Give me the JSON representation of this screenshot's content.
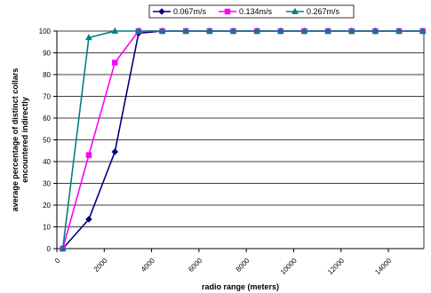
{
  "chart_data": {
    "type": "line",
    "title": "",
    "xlabel": "radio range (meters)",
    "ylabel": "average percentage of distinct collars encountered indirectly",
    "ylabel_lines": [
      "average percentage of distinct collars",
      "encountered indirectly"
    ],
    "xlim": [
      0,
      15500
    ],
    "ylim": [
      0,
      100
    ],
    "x_ticks": [
      0,
      2000,
      4000,
      6000,
      8000,
      10000,
      12000,
      14000
    ],
    "y_ticks": [
      0,
      10,
      20,
      30,
      40,
      50,
      60,
      70,
      80,
      90,
      100
    ],
    "grid": "horizontal",
    "legend_position": "top",
    "series": [
      {
        "name": "0.067m/s",
        "color": "#000080",
        "marker": "diamond",
        "x": [
          250,
          1350,
          2450,
          3450,
          4450,
          5450,
          6450,
          7450,
          8450,
          9450,
          10450,
          11450,
          12450,
          13450,
          14450,
          15450
        ],
        "values": [
          0,
          13.5,
          44.5,
          99,
          100,
          100,
          100,
          100,
          100,
          100,
          100,
          100,
          100,
          100,
          100,
          100
        ]
      },
      {
        "name": "0.134m/s",
        "color": "#ff00ff",
        "marker": "square",
        "x": [
          250,
          1350,
          2450,
          3450,
          4450,
          5450,
          6450,
          7450,
          8450,
          9450,
          10450,
          11450,
          12450,
          13450,
          14450,
          15450
        ],
        "values": [
          0,
          43,
          85.5,
          100,
          100,
          100,
          100,
          100,
          100,
          100,
          100,
          100,
          100,
          100,
          100,
          100
        ]
      },
      {
        "name": "0.267m/s",
        "color": "#008080",
        "marker": "triangle",
        "x": [
          250,
          1350,
          2450,
          3450,
          4450,
          5450,
          6450,
          7450,
          8450,
          9450,
          10450,
          11450,
          12450,
          13450,
          14450,
          15450
        ],
        "values": [
          0,
          97,
          100,
          100,
          100,
          100,
          100,
          100,
          100,
          100,
          100,
          100,
          100,
          100,
          100,
          100
        ]
      }
    ]
  }
}
